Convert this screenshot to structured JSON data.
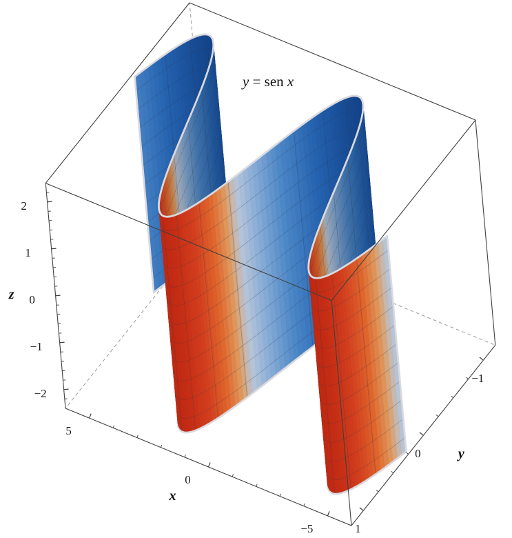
{
  "figure": {
    "annotation": {
      "lhs": "y",
      "mid": " = sen ",
      "rhs": "x"
    }
  },
  "chart_data": {
    "type": "surface",
    "title": "y = sen x",
    "surface": {
      "equation": "y = sen x",
      "formula": "y = sin(x)",
      "x_min": -6,
      "x_max": 6,
      "z_min": -2.3,
      "z_max": 2.3,
      "mesh_x_step": 0.4,
      "mesh_z_step": 0.4,
      "color_by": "y"
    },
    "axes": {
      "x": {
        "label": "x",
        "range": [
          -6,
          6
        ],
        "ticks": [
          {
            "v": 5,
            "label": "5"
          },
          {
            "v": 0,
            "label": "0"
          },
          {
            "v": -5,
            "label": "−5"
          }
        ],
        "minor_step": 1
      },
      "y": {
        "label": "y",
        "range": [
          -1.2,
          1.2
        ],
        "ticks": [
          {
            "v": -1,
            "label": "−1"
          },
          {
            "v": 0,
            "label": "0"
          },
          {
            "v": 1,
            "label": "1"
          }
        ],
        "minor_step": 0.25
      },
      "z": {
        "label": "z",
        "range": [
          -2.4,
          2.4
        ],
        "ticks": [
          {
            "v": 2,
            "label": "2"
          },
          {
            "v": 1,
            "label": "1"
          },
          {
            "v": 0,
            "label": "0"
          },
          {
            "v": -1,
            "label": "−1"
          },
          {
            "v": -2,
            "label": "−2"
          }
        ],
        "minor_step": 0.2
      }
    },
    "colormap": [
      {
        "t": 0.0,
        "c": "#164a96"
      },
      {
        "t": 0.2,
        "c": "#2563b1"
      },
      {
        "t": 0.4,
        "c": "#4b86c6"
      },
      {
        "t": 0.55,
        "c": "#86abd6"
      },
      {
        "t": 0.66,
        "c": "#b9c6d8"
      },
      {
        "t": 0.72,
        "c": "#e09c60"
      },
      {
        "t": 0.8,
        "c": "#e2682e"
      },
      {
        "t": 0.9,
        "c": "#d8401f"
      },
      {
        "t": 1.0,
        "c": "#cf2d15"
      }
    ],
    "surface_edge_color": "#d9d9df",
    "mesh_color": "rgba(50,55,75,0.35)",
    "box_edge_color": "#3f3f3f",
    "hidden_edge_color": "#9a9aa0",
    "tick_color": "#1a1a1a",
    "background": "#ffffff"
  }
}
